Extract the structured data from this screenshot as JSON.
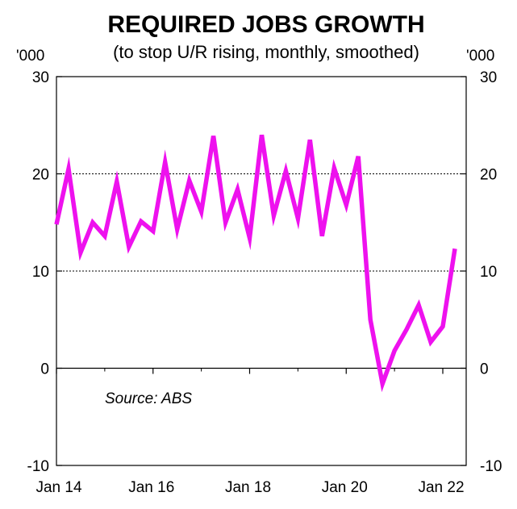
{
  "chart_data": {
    "type": "line",
    "title": "REQUIRED JOBS GROWTH",
    "subtitle": "(to stop U/R rising, monthly, smoothed)",
    "left_unit": "'000",
    "right_unit": "'000",
    "ylim": [
      -10,
      30
    ],
    "y_ticks": [
      -10,
      0,
      10,
      20,
      30
    ],
    "y_tick_labels": [
      "-10",
      "0",
      "10",
      "20",
      "30"
    ],
    "gridlines": [
      10,
      20
    ],
    "x_ticks": [
      "2014-01",
      "2016-01",
      "2018-01",
      "2020-01",
      "2022-01"
    ],
    "x_tick_labels": [
      "Jan 14",
      "Jan 16",
      "Jan 18",
      "Jan 20",
      "Jan 22"
    ],
    "annotation": "Source: ABS",
    "series": [
      {
        "color": "#ee11ee",
        "points": [
          {
            "x": "2014-01",
            "y": 14.8
          },
          {
            "x": "2014-04",
            "y": 20.5
          },
          {
            "x": "2014-07",
            "y": 11.9
          },
          {
            "x": "2014-10",
            "y": 15.0
          },
          {
            "x": "2015-01",
            "y": 13.6
          },
          {
            "x": "2015-04",
            "y": 19.2
          },
          {
            "x": "2015-07",
            "y": 12.5
          },
          {
            "x": "2015-10",
            "y": 15.1
          },
          {
            "x": "2016-01",
            "y": 14.1
          },
          {
            "x": "2016-04",
            "y": 21.2
          },
          {
            "x": "2016-07",
            "y": 14.3
          },
          {
            "x": "2016-10",
            "y": 19.3
          },
          {
            "x": "2017-01",
            "y": 16.1
          },
          {
            "x": "2017-04",
            "y": 23.9
          },
          {
            "x": "2017-07",
            "y": 15.0
          },
          {
            "x": "2017-10",
            "y": 18.4
          },
          {
            "x": "2018-01",
            "y": 13.4
          },
          {
            "x": "2018-04",
            "y": 24.0
          },
          {
            "x": "2018-07",
            "y": 15.7
          },
          {
            "x": "2018-10",
            "y": 20.3
          },
          {
            "x": "2019-01",
            "y": 15.4
          },
          {
            "x": "2019-04",
            "y": 23.5
          },
          {
            "x": "2019-07",
            "y": 13.6
          },
          {
            "x": "2019-10",
            "y": 20.6
          },
          {
            "x": "2020-01",
            "y": 16.8
          },
          {
            "x": "2020-04",
            "y": 21.8
          },
          {
            "x": "2020-07",
            "y": 5.0
          },
          {
            "x": "2020-10",
            "y": -1.6
          },
          {
            "x": "2021-01",
            "y": 1.8
          },
          {
            "x": "2021-04",
            "y": 4.0
          },
          {
            "x": "2021-07",
            "y": 6.5
          },
          {
            "x": "2021-10",
            "y": 2.7
          },
          {
            "x": "2022-01",
            "y": 4.3
          },
          {
            "x": "2022-04",
            "y": 12.3
          }
        ]
      }
    ]
  }
}
